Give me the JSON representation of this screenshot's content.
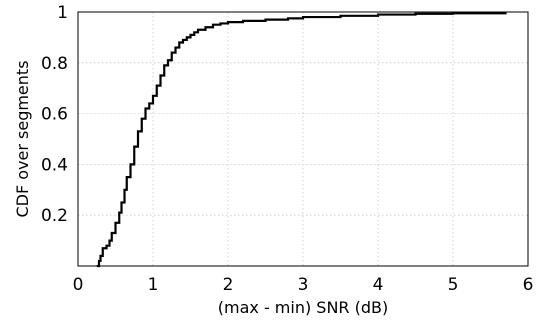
{
  "chart_data": {
    "type": "line",
    "title": "",
    "xlabel": "(max - min) SNR (dB)",
    "ylabel": "CDF over segments",
    "xlim": [
      0,
      6
    ],
    "ylim": [
      0,
      1
    ],
    "grid": true,
    "x_ticks": [
      "0",
      "1",
      "2",
      "3",
      "4",
      "5",
      "6"
    ],
    "y_ticks": [
      "0.2",
      "0.4",
      "0.6",
      "0.8",
      "1"
    ],
    "series": [
      {
        "step": true,
        "color": "#000000",
        "x": [
          0.25,
          0.28,
          0.3,
          0.33,
          0.38,
          0.42,
          0.45,
          0.5,
          0.55,
          0.58,
          0.62,
          0.65,
          0.7,
          0.75,
          0.8,
          0.85,
          0.9,
          0.95,
          1.0,
          1.05,
          1.1,
          1.15,
          1.2,
          1.25,
          1.3,
          1.35,
          1.4,
          1.45,
          1.5,
          1.55,
          1.6,
          1.7,
          1.8,
          1.9,
          2.0,
          2.2,
          2.5,
          2.8,
          3.0,
          3.5,
          4.0,
          4.5,
          5.0,
          5.7
        ],
        "y": [
          0.0,
          0.02,
          0.04,
          0.07,
          0.08,
          0.1,
          0.13,
          0.17,
          0.21,
          0.25,
          0.3,
          0.35,
          0.4,
          0.47,
          0.53,
          0.58,
          0.62,
          0.64,
          0.67,
          0.71,
          0.75,
          0.79,
          0.81,
          0.84,
          0.86,
          0.88,
          0.89,
          0.9,
          0.91,
          0.92,
          0.93,
          0.94,
          0.95,
          0.955,
          0.96,
          0.965,
          0.97,
          0.975,
          0.98,
          0.985,
          0.99,
          0.993,
          0.995,
          1.0
        ]
      }
    ]
  }
}
